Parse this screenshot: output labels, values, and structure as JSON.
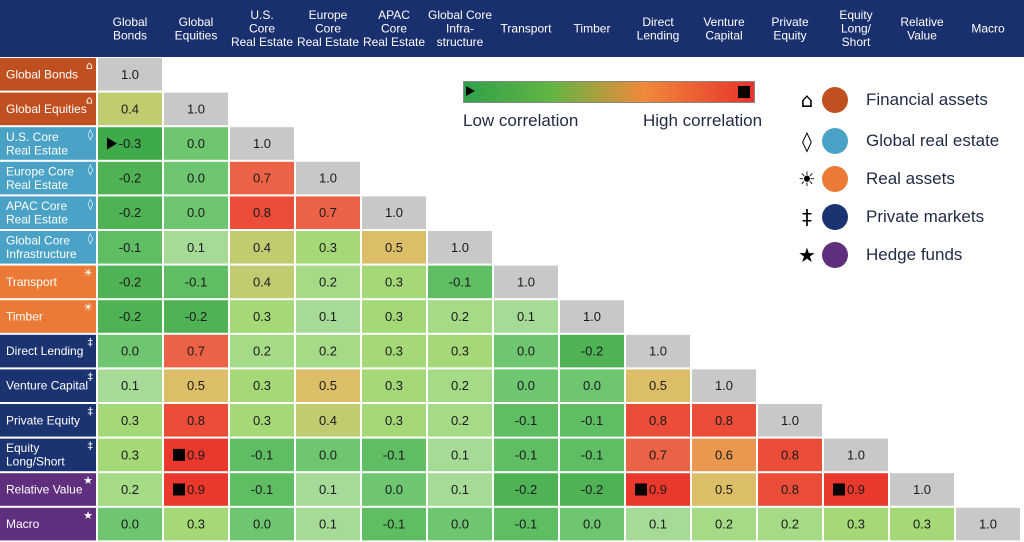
{
  "chart_data": {
    "type": "heatmap",
    "column_headers": [
      "Global\nBonds",
      "Global\nEquities",
      "U.S.\nCore\nReal Estate",
      "Europe\nCore\nReal Estate",
      "APAC\nCore\nReal Estate",
      "Global Core\nInfra-\nstructure",
      "Transport",
      "Timber",
      "Direct\nLending",
      "Venture\nCapital",
      "Private\nEquity",
      "Equity\nLong/\nShort",
      "Relative\nValue",
      "Macro"
    ],
    "rows": [
      {
        "label": "Global Bonds",
        "category": "financial",
        "values": [
          1.0
        ]
      },
      {
        "label": "Global Equities",
        "category": "financial",
        "values": [
          0.4,
          1.0
        ]
      },
      {
        "label": "U.S. Core\nReal Estate",
        "category": "real_estate",
        "values": [
          -0.3,
          0.0,
          1.0
        ]
      },
      {
        "label": "Europe Core\nReal Estate",
        "category": "real_estate",
        "values": [
          -0.2,
          0.0,
          0.7,
          1.0
        ]
      },
      {
        "label": "APAC Core\nReal Estate",
        "category": "real_estate",
        "values": [
          -0.2,
          0.0,
          0.8,
          0.7,
          1.0
        ]
      },
      {
        "label": "Global Core\nInfrastructure",
        "category": "real_estate",
        "values": [
          -0.1,
          0.1,
          0.4,
          0.3,
          0.5,
          1.0
        ]
      },
      {
        "label": "Transport",
        "category": "real_assets",
        "values": [
          -0.2,
          -0.1,
          0.4,
          0.2,
          0.3,
          -0.1,
          1.0
        ]
      },
      {
        "label": "Timber",
        "category": "real_assets",
        "values": [
          -0.2,
          -0.2,
          0.3,
          0.1,
          0.3,
          0.2,
          0.1,
          1.0
        ]
      },
      {
        "label": "Direct Lending",
        "category": "private",
        "values": [
          0.0,
          0.7,
          0.2,
          0.2,
          0.3,
          0.3,
          0.0,
          -0.2,
          1.0
        ]
      },
      {
        "label": "Venture Capital",
        "category": "private",
        "values": [
          0.1,
          0.5,
          0.3,
          0.5,
          0.3,
          0.2,
          0.0,
          0.0,
          0.5,
          1.0
        ]
      },
      {
        "label": "Private Equity",
        "category": "private",
        "values": [
          0.3,
          0.8,
          0.3,
          0.4,
          0.3,
          0.2,
          -0.1,
          -0.1,
          0.8,
          0.8,
          1.0
        ]
      },
      {
        "label": "Equity\nLong/Short",
        "category": "private",
        "values": [
          0.3,
          0.9,
          -0.1,
          0.0,
          -0.1,
          0.1,
          -0.1,
          -0.1,
          0.7,
          0.6,
          0.8,
          1.0
        ]
      },
      {
        "label": "Relative Value",
        "category": "hedge",
        "values": [
          0.2,
          0.9,
          -0.1,
          0.1,
          0.0,
          0.1,
          -0.2,
          -0.2,
          0.9,
          0.5,
          0.8,
          0.9,
          1.0
        ]
      },
      {
        "label": "Macro",
        "category": "hedge",
        "values": [
          0.0,
          0.3,
          0.0,
          0.1,
          -0.1,
          0.0,
          -0.1,
          0.0,
          0.1,
          0.2,
          0.2,
          0.3,
          0.3,
          1.0
        ]
      }
    ],
    "markers": {
      "play": [
        [
          2,
          0
        ]
      ],
      "stop": [
        [
          11,
          1
        ],
        [
          12,
          1
        ],
        [
          12,
          8
        ],
        [
          12,
          11
        ]
      ]
    },
    "color_scale": {
      "low": "Low correlation",
      "high": "High correlation"
    }
  },
  "legend": [
    {
      "key": "financial",
      "symbol": "house-icon",
      "glyph": "⌂",
      "label": "Financial assets",
      "color": "#c0501f"
    },
    {
      "key": "real_estate",
      "symbol": "diamond-icon",
      "glyph": "◊",
      "label": "Global real estate",
      "color": "#4aa3c7"
    },
    {
      "key": "real_assets",
      "symbol": "sun-icon",
      "glyph": "☀",
      "label": "Real assets",
      "color": "#ea7a35"
    },
    {
      "key": "private",
      "symbol": "double-dagger-icon",
      "glyph": "‡",
      "label": "Private markets",
      "color": "#1b3371"
    },
    {
      "key": "hedge",
      "symbol": "star-icon",
      "glyph": "★",
      "label": "Hedge funds",
      "color": "#5f2f7e"
    }
  ],
  "colors": {
    "header_bg": "#1a2f6e",
    "diagonal": "#c8c8c8",
    "financial": "#c0501f",
    "real_estate": "#4aa3c7",
    "real_assets": "#ea7a35",
    "private": "#1b3371",
    "hedge": "#5f2f7e"
  }
}
